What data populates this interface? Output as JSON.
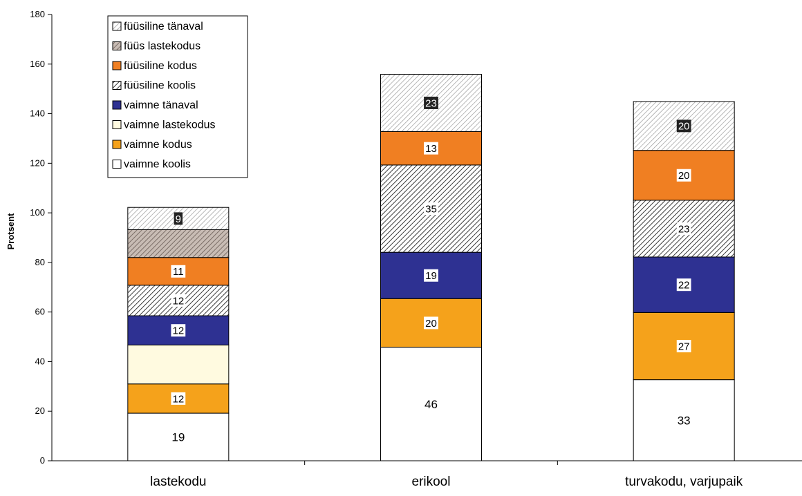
{
  "chart_data": {
    "type": "bar",
    "stacked": true,
    "categories": [
      "lastekodu",
      "erikool",
      "turvakodu, varjupaik"
    ],
    "ylabel": "Protsent",
    "xlabel": "",
    "ylim": [
      0,
      180
    ],
    "yticks": [
      0,
      20,
      40,
      60,
      80,
      100,
      120,
      140,
      160,
      180
    ],
    "grid": false,
    "legend_position": "top-left",
    "series": [
      {
        "name": "vaimne koolis",
        "values": [
          19.2,
          45.8,
          32.7
        ],
        "labels": [
          "19",
          "46",
          "33"
        ],
        "color": "#ffffff",
        "pattern": "none",
        "label_style": "plain"
      },
      {
        "name": "vaimne kodus",
        "values": [
          11.8,
          19.6,
          27.1
        ],
        "labels": [
          "12",
          "20",
          "27"
        ],
        "color": "#f5a21b",
        "pattern": "none",
        "label_style": "box"
      },
      {
        "name": "vaimne lastekodus",
        "values": [
          15.7,
          0,
          0
        ],
        "labels": [
          "",
          "",
          ""
        ],
        "color": "#fffae0",
        "pattern": "none",
        "label_style": "box"
      },
      {
        "name": "vaimne tänaval",
        "values": [
          11.8,
          18.7,
          22.4
        ],
        "labels": [
          "12",
          "19",
          "22"
        ],
        "color": "#2e3192",
        "pattern": "none",
        "label_style": "box"
      },
      {
        "name": "füüsiline koolis",
        "values": [
          12.3,
          35.2,
          22.9
        ],
        "labels": [
          "12",
          "35",
          "23"
        ],
        "color": "#3a3a3a",
        "pattern": "diag-dense",
        "label_style": "box"
      },
      {
        "name": "füüsiline kodus",
        "values": [
          11.2,
          13.5,
          20.1
        ],
        "labels": [
          "11",
          "13",
          "20"
        ],
        "color": "#f07f22",
        "pattern": "none",
        "label_style": "box"
      },
      {
        "name": "füüs lastekodus",
        "values": [
          11.2,
          0,
          0
        ],
        "labels": [
          "",
          "",
          ""
        ],
        "color": "#8a7f7a",
        "pattern": "diag-brown",
        "label_style": "box"
      },
      {
        "name": "füüsiline tänaval",
        "values": [
          9.0,
          23.1,
          19.7
        ],
        "labels": [
          "9",
          "23",
          "20"
        ],
        "color": "#8a8a8a",
        "pattern": "diag-light",
        "label_style": "dark"
      }
    ]
  }
}
